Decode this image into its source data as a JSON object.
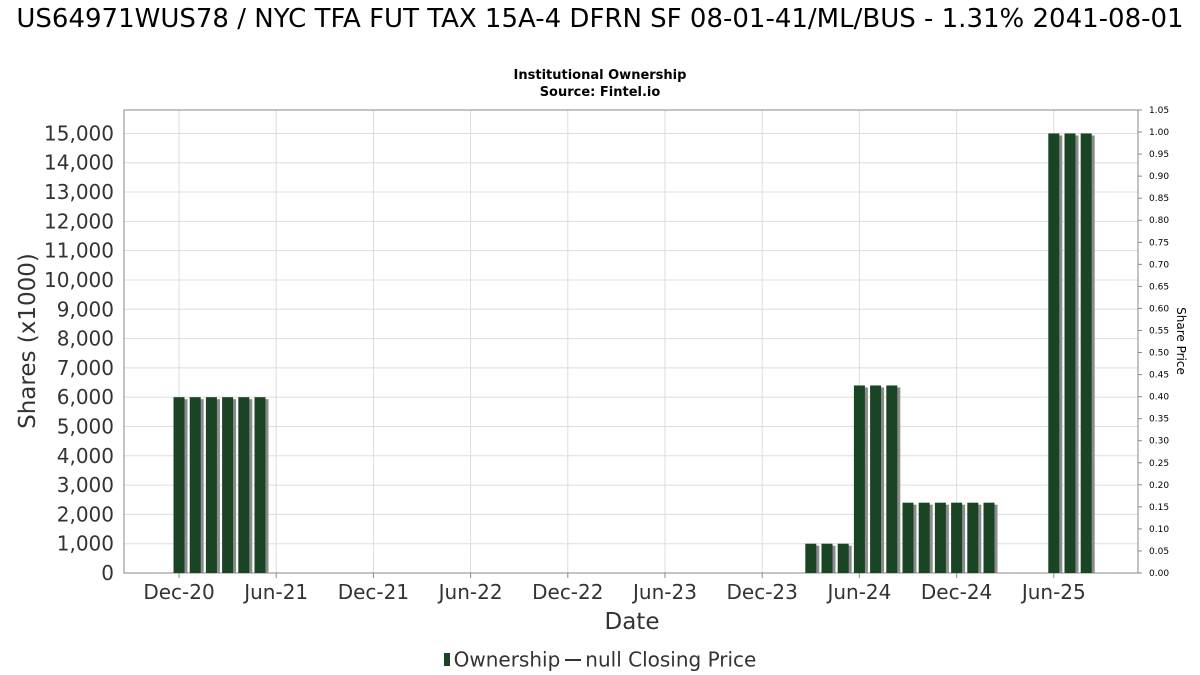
{
  "header": {
    "title": "US64971WUS78 / NYC TFA FUT TAX 15A-4 DFRN SF 08-01-41/ML/BUS - 1.31% 2041-08-01",
    "subtitle_line1": "Institutional Ownership",
    "subtitle_line2": "Source: Fintel.io"
  },
  "legend": {
    "ownership_label": "Ownership",
    "price_label": "null Closing Price"
  },
  "colors": {
    "bar": "#1a4525",
    "bar_shadow": "#8c8c8c",
    "grid": "#dddddd",
    "frame": "#888888"
  },
  "chart_data": {
    "type": "bar",
    "xlabel": "Date",
    "ylabel": "Shares (x1000)",
    "y2label": "Share Price",
    "ylim": [
      0,
      15800
    ],
    "y2lim": [
      0,
      1.05
    ],
    "grid": true,
    "legend_position": "bottom",
    "yticks": [
      0,
      1000,
      2000,
      3000,
      4000,
      5000,
      6000,
      7000,
      8000,
      9000,
      10000,
      11000,
      12000,
      13000,
      14000,
      15000
    ],
    "ytick_labels": [
      "0",
      "1,000",
      "2,000",
      "3,000",
      "4,000",
      "5,000",
      "6,000",
      "7,000",
      "8,000",
      "9,000",
      "10,000",
      "11,000",
      "12,000",
      "13,000",
      "14,000",
      "15,000"
    ],
    "y2ticks": [
      "0.00",
      "0.05",
      "0.10",
      "0.15",
      "0.20",
      "0.25",
      "0.30",
      "0.35",
      "0.40",
      "0.45",
      "0.50",
      "0.55",
      "0.60",
      "0.65",
      "0.70",
      "0.75",
      "0.80",
      "0.85",
      "0.90",
      "0.95",
      "1.00",
      "1.05"
    ],
    "xticks": [
      {
        "label": "Dec-20",
        "date": "2020-12-01"
      },
      {
        "label": "Jun-21",
        "date": "2021-06-01"
      },
      {
        "label": "Dec-21",
        "date": "2021-12-01"
      },
      {
        "label": "Jun-22",
        "date": "2022-06-01"
      },
      {
        "label": "Dec-22",
        "date": "2022-12-01"
      },
      {
        "label": "Jun-23",
        "date": "2023-06-01"
      },
      {
        "label": "Dec-23",
        "date": "2023-12-01"
      },
      {
        "label": "Jun-24",
        "date": "2024-06-01"
      },
      {
        "label": "Dec-24",
        "date": "2024-12-01"
      },
      {
        "label": "Jun-25",
        "date": "2025-06-01"
      }
    ],
    "series": [
      {
        "name": "Ownership",
        "points": [
          {
            "date": "2020-12-01",
            "value": 6000
          },
          {
            "date": "2021-01-01",
            "value": 6000
          },
          {
            "date": "2021-02-01",
            "value": 6000
          },
          {
            "date": "2021-03-01",
            "value": 6000
          },
          {
            "date": "2021-04-01",
            "value": 6000
          },
          {
            "date": "2021-05-01",
            "value": 6000
          },
          {
            "date": "2024-03-01",
            "value": 1000
          },
          {
            "date": "2024-04-01",
            "value": 1000
          },
          {
            "date": "2024-05-01",
            "value": 1000
          },
          {
            "date": "2024-06-01",
            "value": 6400
          },
          {
            "date": "2024-07-01",
            "value": 6400
          },
          {
            "date": "2024-08-01",
            "value": 6400
          },
          {
            "date": "2024-09-01",
            "value": 2400
          },
          {
            "date": "2024-10-01",
            "value": 2400
          },
          {
            "date": "2024-11-01",
            "value": 2400
          },
          {
            "date": "2024-12-01",
            "value": 2400
          },
          {
            "date": "2025-01-01",
            "value": 2400
          },
          {
            "date": "2025-02-01",
            "value": 2400
          },
          {
            "date": "2025-06-01",
            "value": 15000
          },
          {
            "date": "2025-07-01",
            "value": 15000
          },
          {
            "date": "2025-08-01",
            "value": 15000
          }
        ]
      }
    ]
  }
}
